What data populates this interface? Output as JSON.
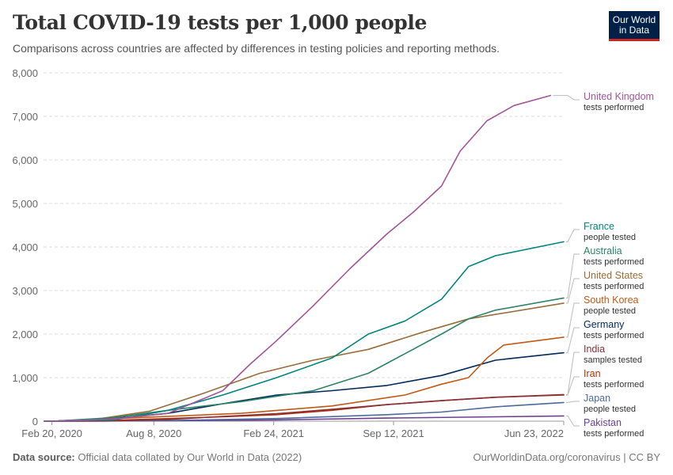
{
  "header": {
    "title": "Total COVID-19 tests per 1,000 people",
    "subtitle": "Comparisons across countries are affected by differences in testing policies and reporting methods.",
    "logo_line1": "Our World",
    "logo_line2": "in Data"
  },
  "footer": {
    "source_label": "Data source:",
    "source_text": "Official data collated by Our World in Data (2022)",
    "url": "OurWorldinData.org/coronavirus | CC BY"
  },
  "colors": {
    "logo_bg": "#002147",
    "logo_accent": "#ce261e",
    "grid": "#dddddd"
  },
  "chart_data": {
    "type": "line",
    "title": "Total COVID-19 tests per 1,000 people",
    "xlabel": "",
    "ylabel": "",
    "ylim": [
      0,
      8000
    ],
    "yticks": [
      0,
      1000,
      2000,
      3000,
      4000,
      5000,
      6000,
      7000,
      8000
    ],
    "ytick_labels": [
      "0",
      "1,000",
      "2,000",
      "3,000",
      "4,000",
      "5,000",
      "6,000",
      "7,000",
      "8,000"
    ],
    "xlim": [
      "2020-02-06",
      "2022-06-23"
    ],
    "xticks": [
      {
        "date": "2020-02-20",
        "label": "Feb 20, 2020"
      },
      {
        "date": "2020-08-08",
        "label": "Aug 8, 2020"
      },
      {
        "date": "2021-02-24",
        "label": "Feb 24, 2021"
      },
      {
        "date": "2021-09-12",
        "label": "Sep 12, 2021"
      },
      {
        "date": "2022-06-23",
        "label": "Jun 23, 2022"
      }
    ],
    "grid": "horizontal dashed",
    "legend": "right, line-end labels",
    "series": [
      {
        "name": "United Kingdom",
        "unit": "tests performed",
        "color": "#a2559c",
        "x": [
          "2020-03-01",
          "2020-06-01",
          "2020-09-01",
          "2020-12-01",
          "2021-01-15",
          "2021-03-01",
          "2021-05-01",
          "2021-07-01",
          "2021-09-01",
          "2021-10-15",
          "2021-12-01",
          "2022-01-01",
          "2022-02-15",
          "2022-04-01",
          "2022-06-01"
        ],
        "values": [
          2,
          50,
          180,
          700,
          1300,
          1850,
          2650,
          3500,
          4300,
          4800,
          5400,
          6200,
          6900,
          7250,
          7480
        ]
      },
      {
        "name": "France",
        "unit": "people tested",
        "color": "#00847e",
        "x": [
          "2020-03-01",
          "2020-06-01",
          "2020-09-01",
          "2020-12-01",
          "2021-03-01",
          "2021-06-01",
          "2021-08-01",
          "2021-10-01",
          "2021-12-01",
          "2022-01-15",
          "2022-03-01",
          "2022-06-23"
        ],
        "values": [
          1,
          30,
          250,
          600,
          1000,
          1450,
          2000,
          2300,
          2800,
          3550,
          3800,
          4120
        ]
      },
      {
        "name": "Australia",
        "unit": "tests performed",
        "color": "#2c8465",
        "x": [
          "2020-03-01",
          "2020-06-01",
          "2020-09-01",
          "2021-01-01",
          "2021-05-01",
          "2021-08-01",
          "2021-10-01",
          "2021-12-01",
          "2022-01-15",
          "2022-03-01",
          "2022-06-23"
        ],
        "values": [
          5,
          80,
          250,
          450,
          700,
          1100,
          1550,
          2000,
          2350,
          2550,
          2830
        ]
      },
      {
        "name": "United States",
        "unit": "tests performed",
        "color": "#996d39",
        "x": [
          "2020-03-01",
          "2020-05-01",
          "2020-08-01",
          "2020-11-01",
          "2021-02-01",
          "2021-05-01",
          "2021-08-01",
          "2021-11-01",
          "2022-01-15",
          "2022-06-23"
        ],
        "values": [
          1,
          40,
          230,
          650,
          1100,
          1400,
          1650,
          2050,
          2350,
          2710
        ]
      },
      {
        "name": "South Korea",
        "unit": "people tested",
        "color": "#c05917",
        "x": [
          "2020-03-01",
          "2021-01-01",
          "2021-06-01",
          "2021-10-01",
          "2021-12-01",
          "2022-01-15",
          "2022-02-15",
          "2022-03-15",
          "2022-06-23"
        ],
        "values": [
          5,
          180,
          350,
          600,
          850,
          1000,
          1450,
          1750,
          1930
        ]
      },
      {
        "name": "Germany",
        "unit": "tests performed",
        "color": "#00295b",
        "x": [
          "2020-03-01",
          "2020-06-01",
          "2020-09-01",
          "2020-12-01",
          "2021-03-01",
          "2021-06-01",
          "2021-09-01",
          "2021-12-01",
          "2022-03-01",
          "2022-06-23"
        ],
        "values": [
          5,
          60,
          180,
          400,
          600,
          700,
          820,
          1050,
          1400,
          1570
        ]
      },
      {
        "name": "India",
        "unit": "samples tested",
        "color": "#883039",
        "x": [
          "2020-03-01",
          "2020-06-01",
          "2020-09-01",
          "2020-12-01",
          "2021-03-01",
          "2021-06-01",
          "2021-09-01",
          "2021-12-01",
          "2022-03-01",
          "2022-06-23"
        ],
        "values": [
          0,
          5,
          40,
          110,
          170,
          270,
          380,
          470,
          550,
          610
        ]
      },
      {
        "name": "Iran",
        "unit": "tests performed",
        "color": "#b13507",
        "x": [
          "2020-03-01",
          "2020-06-01",
          "2020-09-01",
          "2020-12-01",
          "2021-03-01",
          "2021-06-01",
          "2021-09-01",
          "2021-12-01",
          "2022-03-01",
          "2022-06-23"
        ],
        "values": [
          0,
          20,
          60,
          100,
          150,
          250,
          380,
          470,
          550,
          600
        ]
      },
      {
        "name": "Japan",
        "unit": "people tested",
        "color": "#4c6a9c",
        "x": [
          "2020-03-01",
          "2020-09-01",
          "2021-03-01",
          "2021-09-01",
          "2021-12-01",
          "2022-03-01",
          "2022-06-23"
        ],
        "values": [
          0,
          15,
          60,
          150,
          210,
          330,
          430
        ]
      },
      {
        "name": "Pakistan",
        "unit": "tests performed",
        "color": "#6d3e91",
        "x": [
          "2020-03-01",
          "2020-09-01",
          "2021-03-01",
          "2021-09-01",
          "2022-03-01",
          "2022-06-23"
        ],
        "values": [
          0,
          10,
          30,
          70,
          100,
          120
        ]
      }
    ]
  }
}
